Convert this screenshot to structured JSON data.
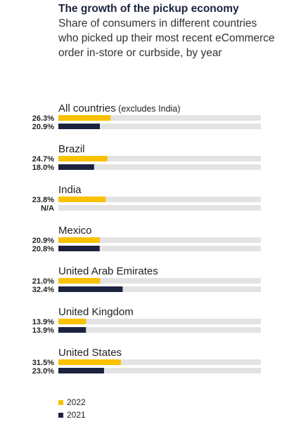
{
  "title": "The growth of the pickup economy",
  "subtitle": "Share of consumers in different countries who picked up their most recent eCommerce order in-store or curbside, by year",
  "colors": {
    "y2022": "#f9c100",
    "y2021": "#1c2340",
    "track": "#e3e3e3"
  },
  "legend": [
    {
      "label": "2022",
      "color": "#f9c100"
    },
    {
      "label": "2021",
      "color": "#1c2340"
    }
  ],
  "chart_data": {
    "type": "bar",
    "orientation": "horizontal",
    "xlim": [
      0,
      100
    ],
    "categories": [
      "All countries",
      "Brazil",
      "India",
      "Mexico",
      "United Arab Emirates",
      "United Kingdom",
      "United States"
    ],
    "category_notes": [
      "(excludes India)",
      "",
      "",
      "",
      "",
      "",
      ""
    ],
    "series": [
      {
        "name": "2022",
        "values": [
          26.3,
          24.7,
          23.8,
          20.9,
          21.0,
          13.9,
          31.5
        ],
        "labels": [
          "26.3%",
          "24.7%",
          "23.8%",
          "20.9%",
          "21.0%",
          "13.9%",
          "31.5%"
        ]
      },
      {
        "name": "2021",
        "values": [
          20.9,
          18.0,
          null,
          20.8,
          32.4,
          13.9,
          23.0
        ],
        "labels": [
          "20.9%",
          "18.0%",
          "N/A",
          "20.8%",
          "32.4%",
          "13.9%",
          "23.0%"
        ]
      }
    ]
  }
}
